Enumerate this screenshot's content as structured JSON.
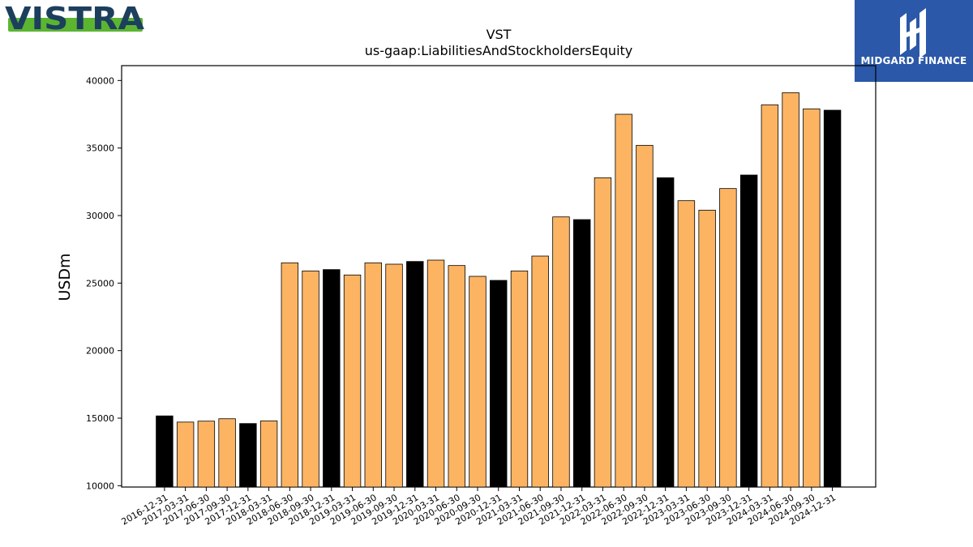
{
  "header": {
    "left_logo_text": "VISTRA",
    "right_logo_text": "MIDGARD FINANCE"
  },
  "colors": {
    "annual_bar": "#000000",
    "quarterly_bar": "#fdb462",
    "vistra_navy": "#1c3f5e",
    "vistra_green": "#5cb531",
    "midgard_blue": "#2b58a8"
  },
  "chart_data": {
    "type": "bar",
    "title": "VST",
    "subtitle": "us-gaap:LiabilitiesAndStockholdersEquity",
    "xlabel": "",
    "ylabel": "USDm",
    "ylim": [
      9900,
      41100
    ],
    "yticks": [
      "10000",
      "15000",
      "20000",
      "25000",
      "30000",
      "35000",
      "40000"
    ],
    "grid": false,
    "categories": [
      "2016-12-31",
      "2017-03-31",
      "2017-06-30",
      "2017-09-30",
      "2017-12-31",
      "2018-03-31",
      "2018-06-30",
      "2018-09-30",
      "2018-12-31",
      "2019-03-31",
      "2019-06-30",
      "2019-09-30",
      "2019-12-31",
      "2020-03-31",
      "2020-06-30",
      "2020-09-30",
      "2020-12-31",
      "2021-03-31",
      "2021-06-30",
      "2021-09-30",
      "2021-12-31",
      "2022-03-31",
      "2022-06-30",
      "2022-09-30",
      "2022-12-31",
      "2023-03-31",
      "2023-06-30",
      "2023-09-30",
      "2023-12-31",
      "2024-03-31",
      "2024-06-30",
      "2024-09-30",
      "2024-12-31"
    ],
    "values": [
      15167,
      14709,
      14778,
      14956,
      14600,
      14800,
      26500,
      25900,
      26000,
      25600,
      26500,
      26400,
      26600,
      26700,
      26300,
      25500,
      25200,
      25900,
      27000,
      29900,
      29700,
      32800,
      37500,
      35200,
      32800,
      31100,
      30400,
      32000,
      33000,
      38200,
      39100,
      37900,
      37800
    ],
    "annual": [
      true,
      false,
      false,
      false,
      true,
      false,
      false,
      false,
      true,
      false,
      false,
      false,
      true,
      false,
      false,
      false,
      true,
      false,
      false,
      false,
      true,
      false,
      false,
      false,
      true,
      false,
      false,
      false,
      true,
      false,
      false,
      false,
      true
    ]
  }
}
